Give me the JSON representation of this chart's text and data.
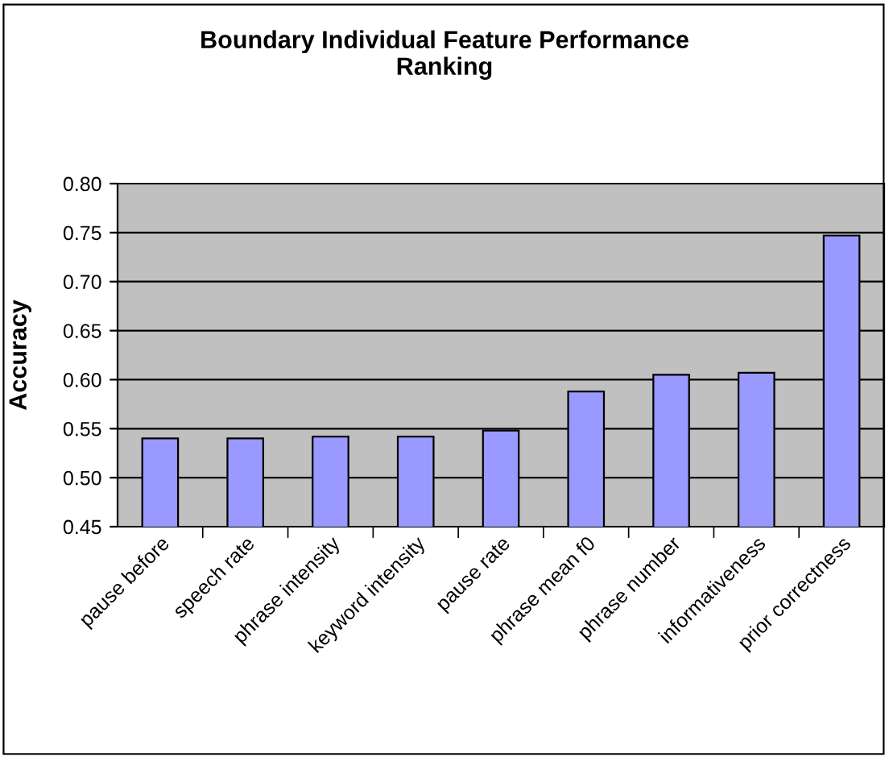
{
  "chart_data": {
    "type": "bar",
    "title": "Boundary Individual Feature Performance\nRanking",
    "ylabel": "Accuracy",
    "categories": [
      "pause before",
      "speech rate",
      "phrase intensity",
      "keyword intensity",
      "pause rate",
      "phrase mean f0",
      "phrase number",
      "informativeness",
      "prior correctness"
    ],
    "values": [
      0.54,
      0.54,
      0.542,
      0.542,
      0.548,
      0.588,
      0.605,
      0.607,
      0.747
    ],
    "color": "#9999ff",
    "ylim": [
      0.45,
      0.8
    ],
    "yticks": [
      {
        "value": 0.45,
        "label": "0.45"
      },
      {
        "value": 0.5,
        "label": "0.50"
      },
      {
        "value": 0.55,
        "label": "0.55"
      },
      {
        "value": 0.6,
        "label": "0.60"
      },
      {
        "value": 0.65,
        "label": "0.65"
      },
      {
        "value": 0.7,
        "label": "0.70"
      },
      {
        "value": 0.75,
        "label": "0.75"
      },
      {
        "value": 0.8,
        "label": "0.80"
      }
    ],
    "grid": "y",
    "legend": false
  }
}
